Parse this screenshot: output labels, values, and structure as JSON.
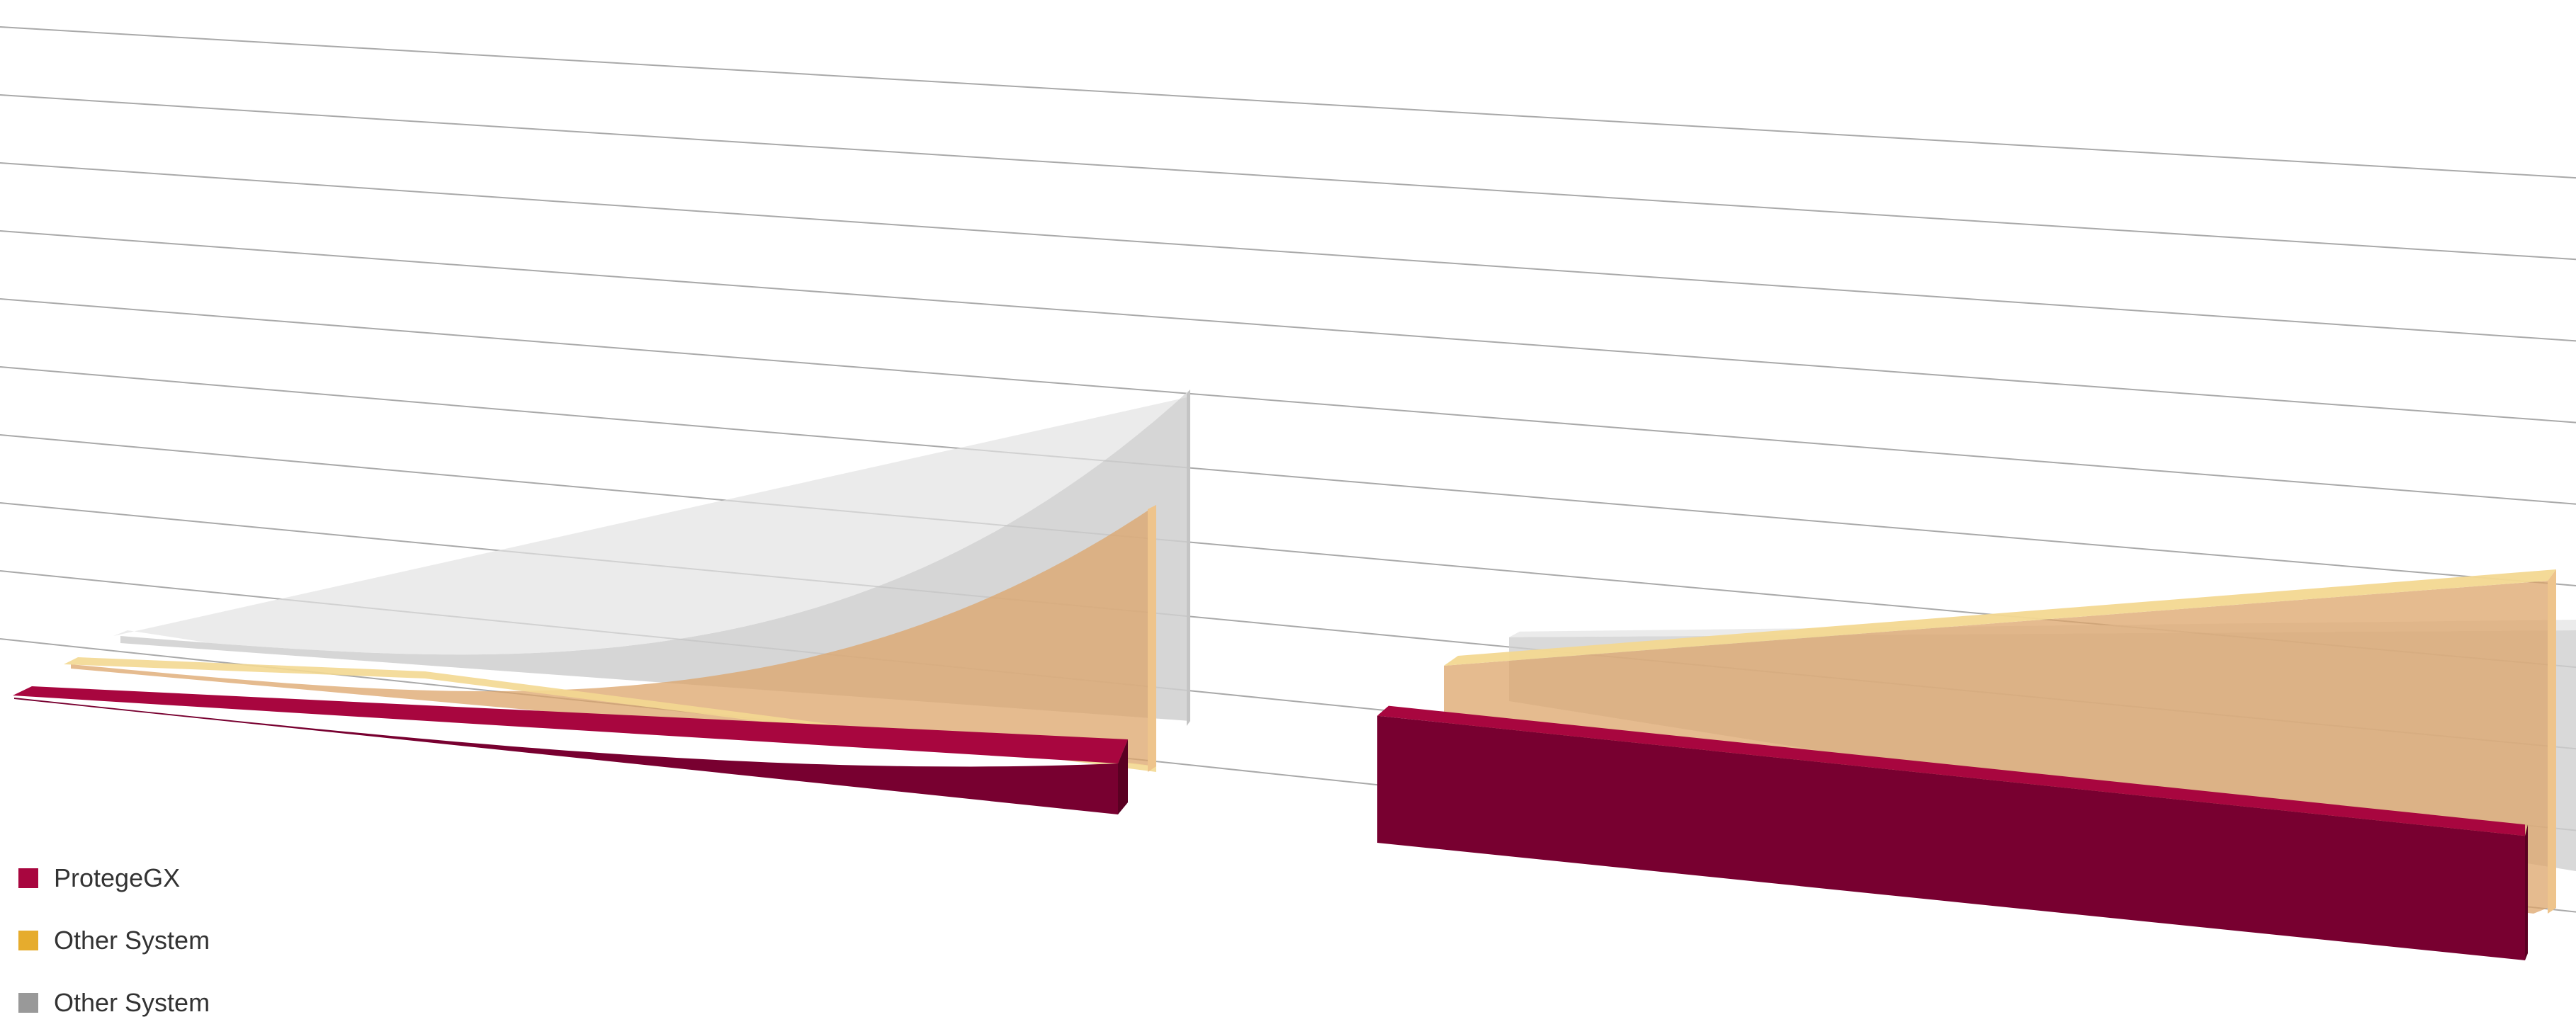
{
  "chart_data": {
    "type": "area",
    "style": "3d-perspective",
    "title": "",
    "xlabel": "",
    "ylabel": "",
    "grid": true,
    "gridline_count": 10,
    "legend_placement": "bottom-left",
    "panels": [
      {
        "profile": "exponential",
        "series": [
          {
            "name": "ProtegeGX",
            "values": [
              0,
              0.5,
              1,
              2,
              4,
              8
            ]
          },
          {
            "name": "Other System",
            "values": [
              0,
              2,
              5,
              12,
              25,
              45
            ]
          },
          {
            "name": "Other System",
            "values": [
              0,
              3,
              8,
              18,
              38,
              65
            ]
          }
        ]
      },
      {
        "profile": "linear",
        "series": [
          {
            "name": "ProtegeGX",
            "values": [
              26,
              26
            ]
          },
          {
            "name": "Other System",
            "values": [
              5,
              60
            ]
          },
          {
            "name": "Other System",
            "values": [
              5,
              100
            ]
          }
        ]
      }
    ]
  },
  "legend": {
    "items": [
      {
        "label": "ProtegeGX",
        "color": "#a8063f"
      },
      {
        "label": "Other System",
        "color": "#e6ac2d"
      },
      {
        "label": "Other System",
        "color": "#999999"
      }
    ]
  },
  "colors": {
    "red_top": "#a8063f",
    "red_front": "#780030",
    "red_side": "#5a0022",
    "orange_face": "#dca46a",
    "orange_top": "#f3d891",
    "orange_side": "#eec48c",
    "gray_face": "#cfcfcf",
    "gray_top": "#e2e2e2",
    "gray_side": "#c4c4c4",
    "gridline": "#a9a9a9"
  }
}
